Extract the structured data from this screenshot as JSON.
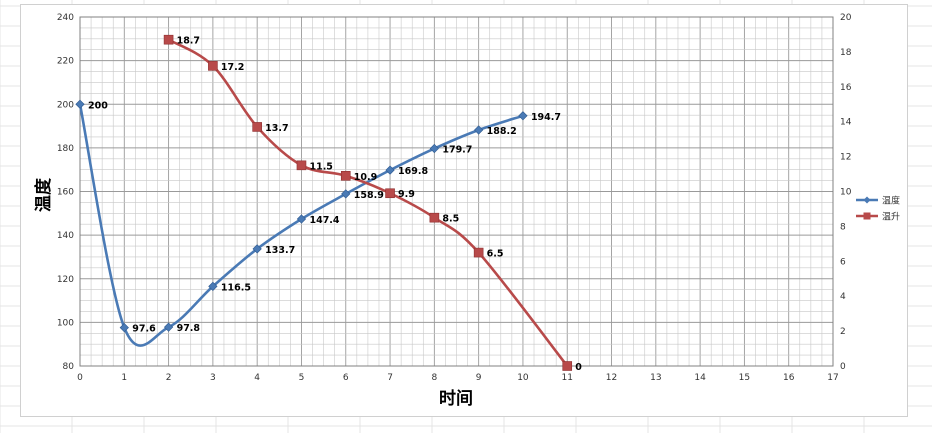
{
  "chart_data": {
    "type": "line",
    "xlabel": "时间",
    "ylabel": "温度",
    "xlim": [
      0,
      17
    ],
    "ylim_left": [
      80,
      240
    ],
    "ylim_right": [
      0,
      20
    ],
    "x_ticks": [
      0,
      1,
      2,
      3,
      4,
      5,
      6,
      7,
      8,
      9,
      10,
      11,
      12,
      13,
      14,
      15,
      16,
      17
    ],
    "y_ticks_left": [
      80,
      100,
      120,
      140,
      160,
      180,
      200,
      220,
      240
    ],
    "y_ticks_right": [
      0,
      2,
      4,
      6,
      8,
      10,
      12,
      14,
      16,
      18,
      20
    ],
    "grid": true,
    "legend_position": "right",
    "series": [
      {
        "name": "温度",
        "axis": "left",
        "color": "#4a7ab5",
        "marker": "diamond",
        "x": [
          0,
          1,
          2,
          3,
          4,
          5,
          6,
          7,
          8,
          9,
          10
        ],
        "values": [
          200,
          97.6,
          97.8,
          116.5,
          133.7,
          147.4,
          158.9,
          169.8,
          179.7,
          188.2,
          194.7
        ],
        "labels": [
          "200",
          "97.6",
          "97.8",
          "116.5",
          "133.7",
          "147.4",
          "158.9",
          "169.8",
          "179.7",
          "188.2",
          "194.7"
        ]
      },
      {
        "name": "温升",
        "axis": "right",
        "color": "#b84a4a",
        "marker": "square",
        "x": [
          2,
          3,
          4,
          5,
          6,
          7,
          8,
          9,
          11
        ],
        "values": [
          18.7,
          17.2,
          13.7,
          11.5,
          10.9,
          9.9,
          8.5,
          6.5,
          0
        ],
        "labels": [
          "18.7",
          "17.2",
          "13.7",
          "11.5",
          "10.9",
          "9.9",
          "8.5",
          "6.5",
          "0"
        ]
      }
    ]
  }
}
